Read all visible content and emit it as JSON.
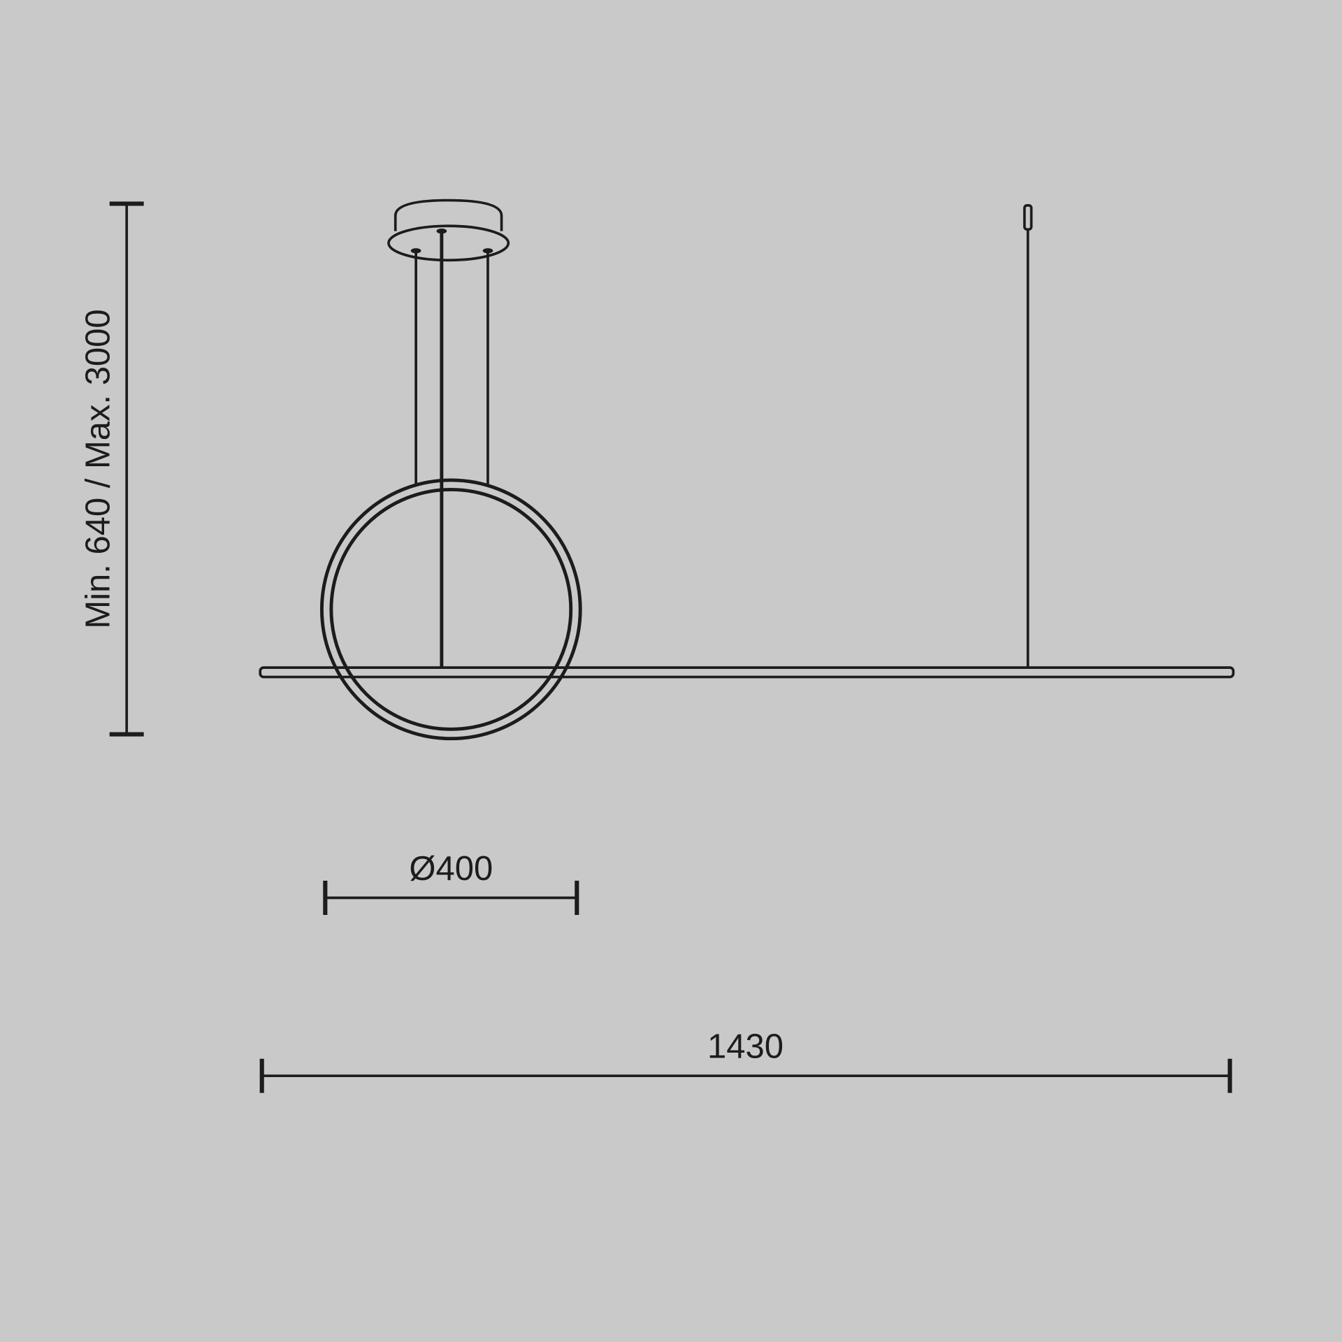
{
  "dimensions": {
    "height_label": "Min. 640 / Max. 3000",
    "ring_diameter_label": "Ø400",
    "total_width_label": "1430"
  },
  "colors": {
    "background": "#c9c9c9",
    "line": "#1c1c1c"
  }
}
